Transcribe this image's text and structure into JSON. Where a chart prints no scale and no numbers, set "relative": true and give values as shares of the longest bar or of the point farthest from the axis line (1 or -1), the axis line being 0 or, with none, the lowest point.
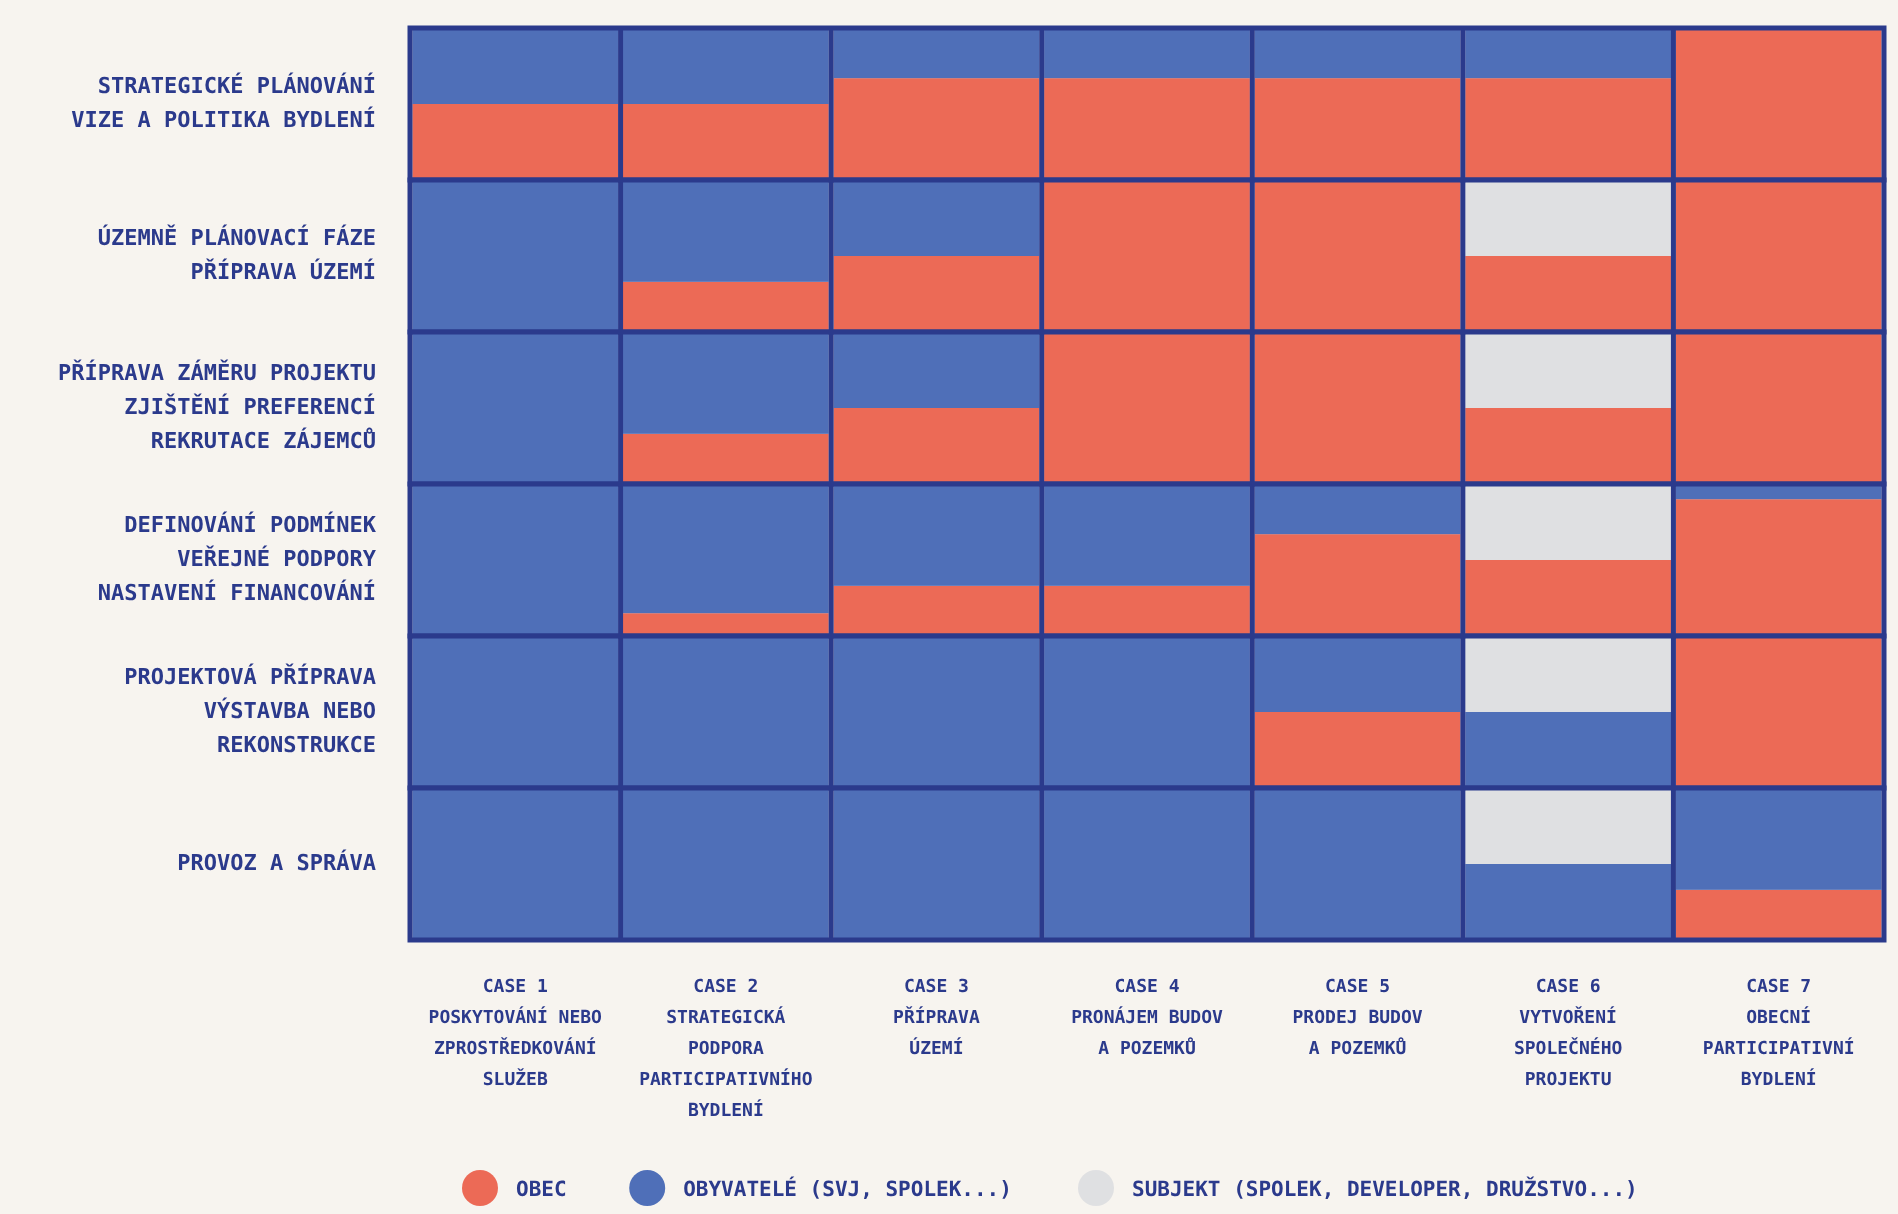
{
  "chart_data": [
    {
      "type": "bar",
      "stacked": true,
      "relative": true,
      "ylabel": "STRATEGICKÉ PLÁNOVÁNÍ\nVIZE A POLITIKA BYDLENÍ",
      "tick_labels": false,
      "legend": false,
      "categories": [
        null,
        null,
        null,
        null,
        null,
        null,
        null
      ],
      "series": [
        {
          "color": "#ec6a56",
          "values": [
            0.5,
            0.5,
            0.67,
            0.67,
            0.67,
            0.67,
            1
          ]
        },
        {
          "color": "#4f6fb8",
          "values": [
            0.5,
            0.5,
            0.33,
            0.33,
            0.33,
            0.33,
            0
          ]
        }
      ]
    },
    {
      "type": "bar",
      "stacked": true,
      "relative": true,
      "ylabel": "ÚZEMNĚ PLÁNOVACÍ FÁZE\nPŘÍPRAVA ÚZEMÍ",
      "tick_labels": false,
      "legend": false,
      "categories": [
        null,
        null,
        null,
        null,
        null,
        null,
        null
      ],
      "series": [
        {
          "color": "#ec6a56",
          "values": [
            0,
            0.33,
            0.5,
            1,
            1,
            0.5,
            1
          ]
        },
        {
          "color": "#4f6fb8",
          "values": [
            1,
            0.67,
            0.5,
            0,
            0,
            0,
            0
          ]
        },
        {
          "color": "#dfe0e2",
          "values": [
            0,
            0,
            0,
            0,
            0,
            0.5,
            0
          ]
        }
      ]
    },
    {
      "type": "bar",
      "stacked": true,
      "relative": true,
      "ylabel": "PŘÍPRAVA ZÁMĚRU PROJEKTU\nZJIŠTĚNÍ PREFERENCÍ\nREKRUTACE ZÁJEMCŮ",
      "tick_labels": false,
      "legend": false,
      "categories": [
        null,
        null,
        null,
        null,
        null,
        null,
        null
      ],
      "series": [
        {
          "color": "#ec6a56",
          "values": [
            0,
            0.33,
            0.5,
            1,
            1,
            0.5,
            1
          ]
        },
        {
          "color": "#4f6fb8",
          "values": [
            1,
            0.67,
            0.5,
            0,
            0,
            0,
            0
          ]
        },
        {
          "color": "#dfe0e2",
          "values": [
            0,
            0,
            0,
            0,
            0,
            0.5,
            0
          ]
        }
      ]
    },
    {
      "type": "bar",
      "stacked": true,
      "relative": true,
      "ylabel": "DEFINOVÁNÍ PODMÍNEK\nVEŘEJNÉ PODPORY\nNASTAVENÍ FINANCOVÁNÍ",
      "tick_labels": false,
      "legend": false,
      "categories": [
        null,
        null,
        null,
        null,
        null,
        null,
        null
      ],
      "series": [
        {
          "color": "#ec6a56",
          "values": [
            0,
            0.15,
            0.33,
            0.33,
            0.67,
            0.5,
            0.9
          ]
        },
        {
          "color": "#4f6fb8",
          "values": [
            1,
            0.85,
            0.67,
            0.67,
            0.33,
            0,
            0.1
          ]
        },
        {
          "color": "#dfe0e2",
          "values": [
            0,
            0,
            0,
            0,
            0,
            0.5,
            0
          ]
        }
      ]
    },
    {
      "type": "bar",
      "stacked": true,
      "relative": true,
      "ylabel": "PROJEKTOVÁ PŘÍPRAVA\nVÝSTAVBA NEBO\nREKONSTRUKCE",
      "tick_labels": false,
      "legend": false,
      "categories": [
        null,
        null,
        null,
        null,
        null,
        null,
        null
      ],
      "series": [
        {
          "color": "#ec6a56",
          "values": [
            0,
            0,
            0,
            0,
            0.5,
            0,
            1
          ]
        },
        {
          "color": "#4f6fb8",
          "values": [
            1,
            1,
            1,
            1,
            0.5,
            0.5,
            0
          ]
        },
        {
          "color": "#dfe0e2",
          "values": [
            0,
            0,
            0,
            0,
            0,
            0.5,
            0
          ]
        }
      ]
    },
    {
      "type": "bar",
      "stacked": true,
      "relative": true,
      "ylabel": "PROVOZ A SPRÁVA",
      "tick_labels": "x",
      "legend": "bottom",
      "categories": [
        "CASE 1\nPOSKYTOVÁNÍ NEBO\nZPROSTŘEDKOVÁNÍ\nSLUŽEB",
        "CASE 2\nSTRATEGICKÁ\nPODPORA\nPARTICIPATIVNÍHO\nBYDLENÍ",
        "CASE 3\nPŘÍPRAVA\nÚZEMÍ",
        "CASE 4\nPRONÁJEM BUDOV\nA POZEMKŮ",
        "CASE 5\nPRODEJ BUDOV\nA POZEMKŮ",
        "CASE 6\nVYTVOŘENÍ\nSPOLEČNÉHO\nPROJEKTU",
        "CASE 7\nOBECNÍ\nPARTICIPATIVNÍ\nBYDLENÍ"
      ],
      "series": [
        {
          "name": "OBEC",
          "color": "#ec6a56",
          "values": [
            0,
            0,
            0,
            0,
            0,
            0,
            0.33
          ]
        },
        {
          "name": "OBYVATELÉ (SVJ, SPOLEK...)",
          "color": "#4f6fb8",
          "values": [
            1,
            1,
            1,
            1,
            1,
            0.5,
            0.67
          ]
        },
        {
          "name": "SUBJEKT (SPOLEK, DEVELOPER, DRUŽSTVO...)",
          "color": "#dfe0e2",
          "values": [
            0,
            0,
            0,
            0,
            0,
            0.5,
            0
          ]
        }
      ]
    }
  ]
}
